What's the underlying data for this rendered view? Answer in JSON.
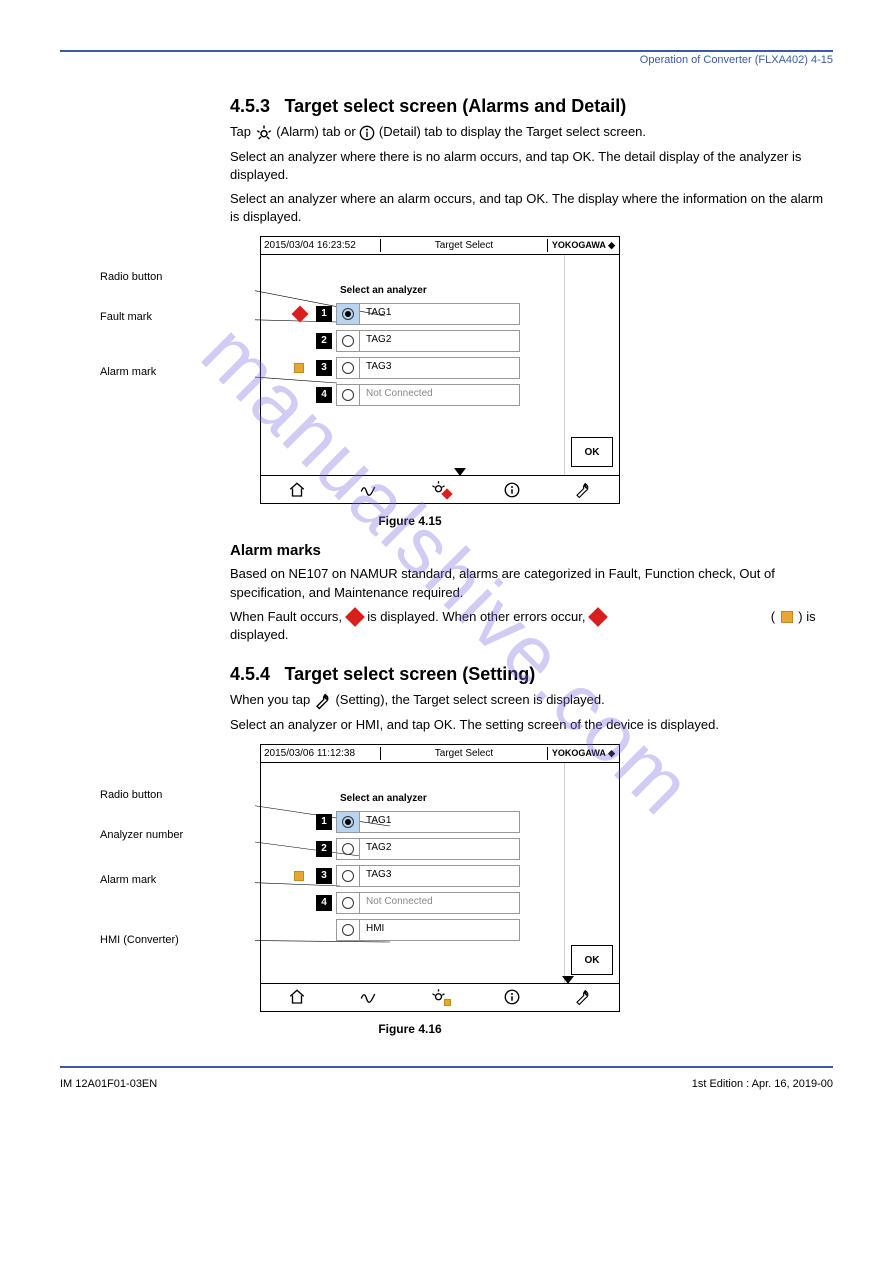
{
  "header_right": "Operation of Converter (FLXA402)    4-15",
  "sec1": {
    "num": "4.5.3",
    "title": "Target select screen (Alarms and Detail)",
    "p1_a": "Tap ",
    "p1_b": " (Alarm) tab or ",
    "p1_c": " (Detail) tab to display the Target select screen.",
    "p2": "Select an analyzer where there is no alarm occurs, and tap OK. The detail display of the analyzer is displayed.",
    "p3": "Select an analyzer where an alarm occurs, and tap OK. The display where the information on the alarm is displayed.",
    "fig_caption": "Figure 4.15"
  },
  "screen1": {
    "datetime": "2015/03/04 16:23:52",
    "title": "Target  Select",
    "brand": "YOKOGAWA ◆",
    "prompt": "Select an analyzer",
    "rows": [
      {
        "n": "1",
        "tag": "TAG1",
        "sel": true,
        "pre": "diamond-r"
      },
      {
        "n": "2",
        "tag": "TAG2",
        "sel": false,
        "pre": ""
      },
      {
        "n": "3",
        "tag": "TAG3",
        "sel": false,
        "pre": "square-y"
      },
      {
        "n": "4",
        "tag": "Not Connected",
        "sel": false,
        "pre": "",
        "nc": true
      }
    ],
    "ok": "OK",
    "callouts": {
      "c1": "Radio button",
      "c2": "Fault mark",
      "c3": "Alarm mark"
    },
    "marker_left_pct": 54
  },
  "alarm_block": {
    "h": "Alarm marks",
    "p_a": "Based on NE107 on NAMUR standard, alarms are categorized in Fault, Function check, Out of specification, and Maintenance required.",
    "p_b_a": "When Fault occurs, ",
    "p_b_b": " is displayed. When other errors occur, ",
    "p_b_c": ") is displayed."
  },
  "sec2": {
    "num": "4.5.4",
    "title": "Target select screen (Setting)",
    "p1_a": "When you tap ",
    "p1_b": " (Setting), the Target select screen is displayed.",
    "p2": "Select an analyzer or HMI, and tap OK. The setting screen of the device is displayed.",
    "fig_caption": "Figure 4.16"
  },
  "screen2": {
    "datetime": "2015/03/06 11:12:38",
    "title": "Target  Select",
    "brand": "YOKOGAWA ◆",
    "prompt": "Select an analyzer",
    "rows": [
      {
        "n": "1",
        "tag": "TAG1",
        "sel": true,
        "pre": ""
      },
      {
        "n": "2",
        "tag": "TAG2",
        "sel": false,
        "pre": ""
      },
      {
        "n": "3",
        "tag": "TAG3",
        "sel": false,
        "pre": "square-y"
      },
      {
        "n": "4",
        "tag": "Not Connected",
        "sel": false,
        "pre": "",
        "nc": true
      },
      {
        "n": "",
        "tag": "HMI",
        "sel": false,
        "pre": ""
      }
    ],
    "ok": "OK",
    "callouts": {
      "c1": "Radio button",
      "c2": "Analyzer number",
      "c3": "Alarm mark",
      "c4": "HMI (Converter)"
    },
    "marker_left_pct": 84
  },
  "footer": {
    "l": "IM 12A01F01-03EN",
    "r": "1st Edition : Apr. 16, 2019-00"
  },
  "watermark": "manualshive.com"
}
